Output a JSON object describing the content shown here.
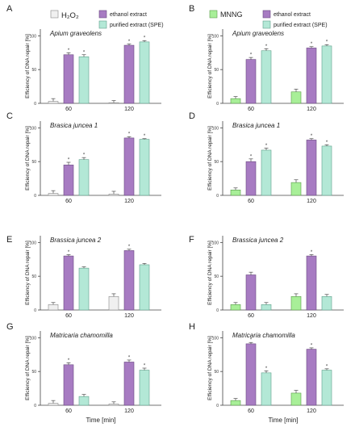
{
  "legend_left": {
    "items": [
      {
        "label": "H₂O₂",
        "color": "#f0f0f0"
      },
      {
        "label": "ethanol extract",
        "color": "#a77bc2"
      },
      {
        "label": "purified extract (SPE)",
        "color": "#b3e8d6"
      }
    ]
  },
  "legend_right": {
    "items": [
      {
        "label": "MNNG",
        "color": "#a8ef98"
      },
      {
        "label": "ethanol extract",
        "color": "#a77bc2"
      },
      {
        "label": "purified extract (SPE)",
        "color": "#b3e8d6"
      }
    ]
  },
  "shared": {
    "ylabel": "Efficiency of DNA repair [%]",
    "xlabel": "Time [min]",
    "yticks": [
      "0",
      "50",
      "100"
    ]
  },
  "chart_data": [
    {
      "panel": "A",
      "type": "bar",
      "title": "Apium graveolens",
      "categories": [
        "60",
        "120"
      ],
      "ylim": [
        0,
        110
      ],
      "ylabel": "Efficiency of DNA repair [%]",
      "xlabel": "",
      "series": [
        {
          "name": "H₂O₂",
          "color": "#f0f0f0",
          "values": [
            3,
            1
          ],
          "errors": [
            4,
            3
          ],
          "sig": [
            false,
            false
          ]
        },
        {
          "name": "ethanol extract",
          "color": "#a77bc2",
          "values": [
            72,
            86
          ],
          "errors": [
            3,
            2
          ],
          "sig": [
            true,
            true
          ]
        },
        {
          "name": "purified extract (SPE)",
          "color": "#b3e8d6",
          "values": [
            69,
            91
          ],
          "errors": [
            3,
            2
          ],
          "sig": [
            true,
            true
          ]
        }
      ]
    },
    {
      "panel": "B",
      "type": "bar",
      "title": "Apium graveolens",
      "categories": [
        "60",
        "120"
      ],
      "ylim": [
        0,
        110
      ],
      "ylabel": "Efficiency of DNA repair [%]",
      "xlabel": "",
      "series": [
        {
          "name": "MNNG",
          "color": "#a8ef98",
          "values": [
            7,
            17
          ],
          "errors": [
            3,
            4
          ],
          "sig": [
            false,
            false
          ]
        },
        {
          "name": "ethanol extract",
          "color": "#a77bc2",
          "values": [
            65,
            82
          ],
          "errors": [
            3,
            2
          ],
          "sig": [
            true,
            true
          ]
        },
        {
          "name": "purified extract (SPE)",
          "color": "#b3e8d6",
          "values": [
            78,
            85
          ],
          "errors": [
            3,
            2
          ],
          "sig": [
            true,
            true
          ]
        }
      ]
    },
    {
      "panel": "C",
      "type": "bar",
      "title": "Brasica juncea 1",
      "categories": [
        "60",
        "120"
      ],
      "ylim": [
        0,
        110
      ],
      "ylabel": "Efficiency of DNA repair [%]",
      "xlabel": "",
      "series": [
        {
          "name": "H₂O₂",
          "color": "#f0f0f0",
          "values": [
            3,
            2
          ],
          "errors": [
            4,
            4
          ],
          "sig": [
            false,
            false
          ]
        },
        {
          "name": "ethanol extract",
          "color": "#a77bc2",
          "values": [
            45,
            85
          ],
          "errors": [
            4,
            2
          ],
          "sig": [
            true,
            true
          ]
        },
        {
          "name": "purified extract (SPE)",
          "color": "#b3e8d6",
          "values": [
            53,
            83
          ],
          "errors": [
            3,
            1
          ],
          "sig": [
            true,
            true
          ]
        }
      ]
    },
    {
      "panel": "D",
      "type": "bar",
      "title": "Brasica juncea 1",
      "categories": [
        "60",
        "120"
      ],
      "ylim": [
        0,
        110
      ],
      "ylabel": "Efficiency of DNA repair [%]",
      "xlabel": "",
      "series": [
        {
          "name": "MNNG",
          "color": "#a8ef98",
          "values": [
            8,
            19
          ],
          "errors": [
            3,
            4
          ],
          "sig": [
            false,
            false
          ]
        },
        {
          "name": "ethanol extract",
          "color": "#a77bc2",
          "values": [
            50,
            82
          ],
          "errors": [
            4,
            2
          ],
          "sig": [
            true,
            true
          ]
        },
        {
          "name": "purified extract (SPE)",
          "color": "#b3e8d6",
          "values": [
            67,
            73
          ],
          "errors": [
            3,
            2
          ],
          "sig": [
            true,
            true
          ]
        }
      ]
    },
    {
      "panel": "E",
      "type": "bar",
      "title": "Brassica juncea 2",
      "categories": [
        "60",
        "120"
      ],
      "ylim": [
        0,
        110
      ],
      "ylabel": "Efficiency of DNA repair [%]",
      "xlabel": "",
      "series": [
        {
          "name": "H₂O₂",
          "color": "#f0f0f0",
          "values": [
            8,
            20
          ],
          "errors": [
            3,
            4
          ],
          "sig": [
            false,
            false
          ]
        },
        {
          "name": "ethanol extract",
          "color": "#a77bc2",
          "values": [
            80,
            88
          ],
          "errors": [
            2,
            2
          ],
          "sig": [
            true,
            true
          ]
        },
        {
          "name": "purified extract (SPE)",
          "color": "#b3e8d6",
          "values": [
            62,
            67
          ],
          "errors": [
            2,
            2
          ],
          "sig": [
            false,
            false
          ]
        }
      ]
    },
    {
      "panel": "F",
      "type": "bar",
      "title": "Brassica juncea 2",
      "categories": [
        "60",
        "120"
      ],
      "ylim": [
        0,
        110
      ],
      "ylabel": "Efficiency of DNA repair [%]",
      "xlabel": "",
      "series": [
        {
          "name": "MNNG",
          "color": "#a8ef98",
          "values": [
            8,
            20
          ],
          "errors": [
            3,
            4
          ],
          "sig": [
            false,
            false
          ]
        },
        {
          "name": "ethanol extract",
          "color": "#a77bc2",
          "values": [
            52,
            80
          ],
          "errors": [
            4,
            2
          ],
          "sig": [
            false,
            true
          ]
        },
        {
          "name": "purified extract (SPE)",
          "color": "#b3e8d6",
          "values": [
            8,
            20
          ],
          "errors": [
            3,
            3
          ],
          "sig": [
            false,
            false
          ]
        }
      ]
    },
    {
      "panel": "G",
      "type": "bar",
      "title": "Matricaria chamomilla",
      "categories": [
        "60",
        "120"
      ],
      "ylim": [
        0,
        110
      ],
      "ylabel": "Efficiency of DNA repair [%]",
      "xlabel": "Time [min]",
      "series": [
        {
          "name": "H₂O₂",
          "color": "#f0f0f0",
          "values": [
            3,
            2
          ],
          "errors": [
            4,
            3
          ],
          "sig": [
            false,
            false
          ]
        },
        {
          "name": "ethanol extract",
          "color": "#a77bc2",
          "values": [
            60,
            64
          ],
          "errors": [
            3,
            3
          ],
          "sig": [
            true,
            true
          ]
        },
        {
          "name": "purified extract (SPE)",
          "color": "#b3e8d6",
          "values": [
            13,
            52
          ],
          "errors": [
            3,
            3
          ],
          "sig": [
            false,
            true
          ]
        }
      ]
    },
    {
      "panel": "H",
      "type": "bar",
      "title": "Matricaria chamomilla",
      "categories": [
        "60",
        "120"
      ],
      "ylim": [
        0,
        110
      ],
      "ylabel": "Efficiency of DNA repair [%]",
      "xlabel": "Time [min]",
      "series": [
        {
          "name": "MNNG",
          "color": "#a8ef98",
          "values": [
            7,
            18
          ],
          "errors": [
            3,
            4
          ],
          "sig": [
            false,
            false
          ]
        },
        {
          "name": "ethanol extract",
          "color": "#a77bc2",
          "values": [
            91,
            83
          ],
          "errors": [
            2,
            2
          ],
          "sig": [
            true,
            true
          ]
        },
        {
          "name": "purified extract (SPE)",
          "color": "#b3e8d6",
          "values": [
            48,
            52
          ],
          "errors": [
            3,
            2
          ],
          "sig": [
            true,
            true
          ]
        }
      ]
    }
  ]
}
